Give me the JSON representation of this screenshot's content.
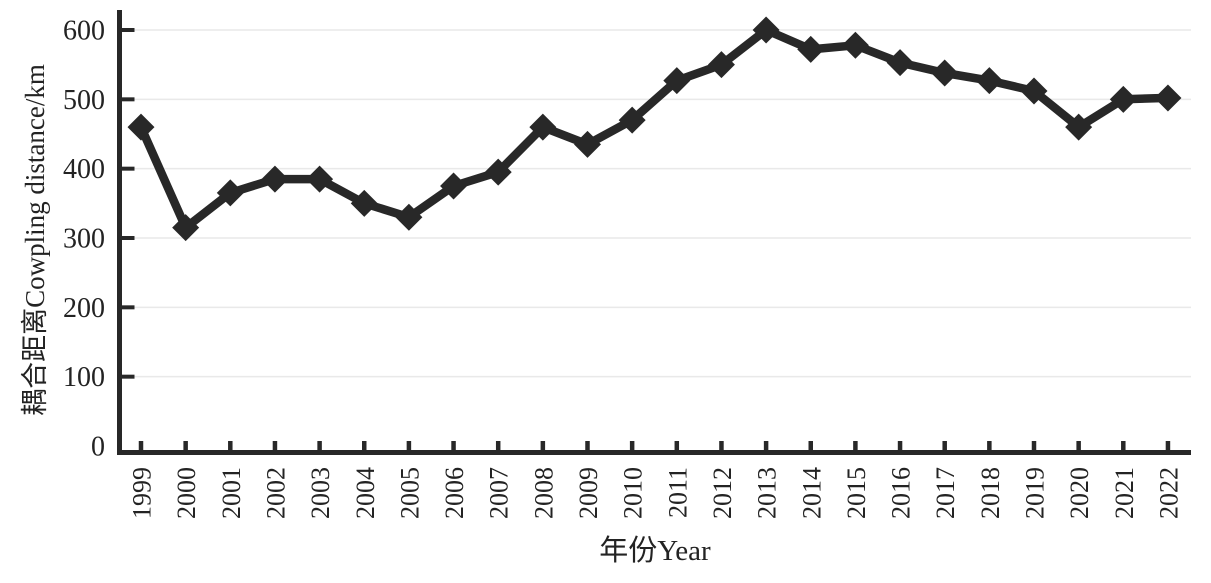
{
  "chart_data": {
    "type": "line",
    "title": "",
    "xlabel": "年份Year",
    "ylabel": "耦合距离Cowpling distance/km",
    "x": [
      1999,
      2000,
      2001,
      2002,
      2003,
      2004,
      2005,
      2006,
      2007,
      2008,
      2009,
      2010,
      2011,
      2012,
      2013,
      2014,
      2015,
      2016,
      2017,
      2018,
      2019,
      2020,
      2021,
      2022
    ],
    "series": [
      {
        "name": "耦合距离Cowpling distance/km",
        "marker": "diamond",
        "values": [
          460,
          315,
          365,
          385,
          385,
          350,
          330,
          375,
          395,
          460,
          435,
          470,
          527,
          550,
          600,
          572,
          578,
          553,
          538,
          527,
          512,
          460,
          500,
          502
        ]
      }
    ],
    "ylim": [
      0,
      600
    ],
    "yticks": [
      0,
      100,
      200,
      300,
      400,
      500,
      600
    ],
    "xtick_labels": [
      "1999",
      "2000",
      "2001",
      "2002",
      "2003",
      "2004",
      "2005",
      "2006",
      "2007",
      "2008",
      "2009",
      "2010",
      "2011",
      "2012",
      "2013",
      "2014",
      "2015",
      "2016",
      "2017",
      "2018",
      "2019",
      "2020",
      "2021",
      "2022"
    ],
    "grid": "horizontal",
    "legend_position": "none",
    "colors": {
      "line": "#282828",
      "marker": "#282828",
      "axis": "#282828",
      "grid": "#e9e9e9",
      "text": "#232323",
      "background": "#ffffff"
    }
  }
}
